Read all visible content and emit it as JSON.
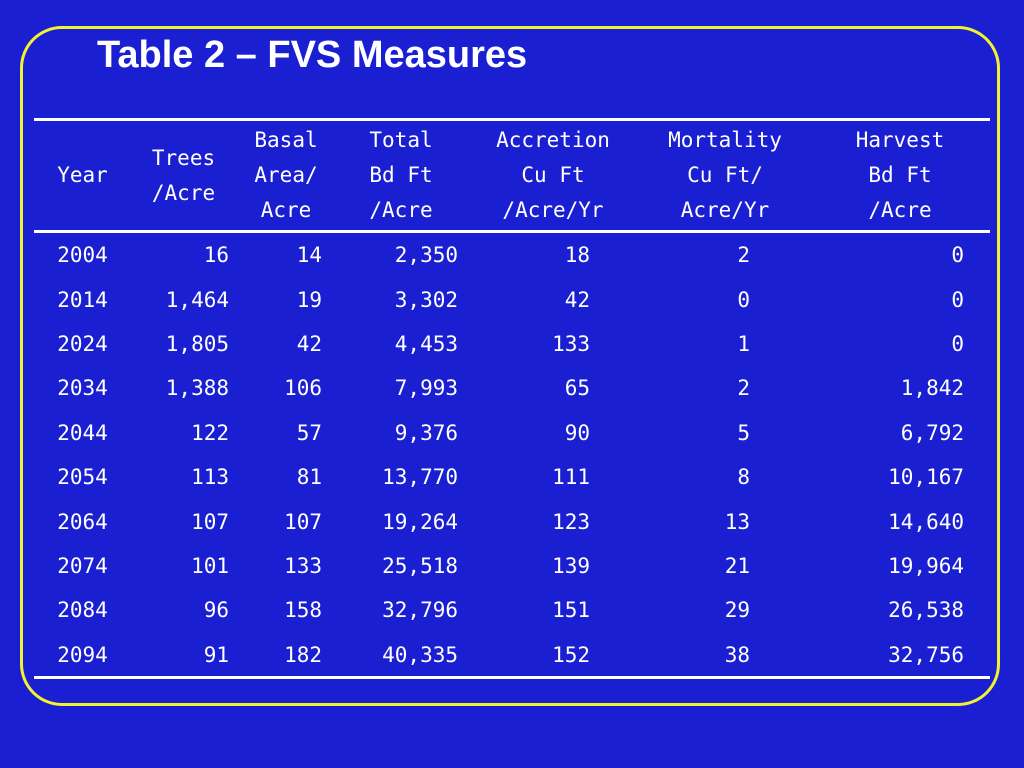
{
  "slide": {
    "title": "Table 2 – FVS Measures",
    "colors": {
      "background": "#1a1fd1",
      "frame_border": "#f2f230",
      "text": "#ffffff"
    }
  },
  "table": {
    "headers": [
      [
        "Year"
      ],
      [
        "Trees",
        "/Acre"
      ],
      [
        "Basal",
        "Area/",
        "Acre"
      ],
      [
        "Total",
        "Bd Ft",
        "/Acre"
      ],
      [
        "Accretion",
        "Cu Ft",
        "/Acre/Yr"
      ],
      [
        "Mortality",
        "Cu Ft/",
        "Acre/Yr"
      ],
      [
        "Harvest",
        "Bd Ft",
        "/Acre"
      ]
    ],
    "rows": [
      [
        "2004",
        "16",
        "14",
        "2,350",
        "18",
        "2",
        "0"
      ],
      [
        "2014",
        "1,464",
        "19",
        "3,302",
        "42",
        "0",
        "0"
      ],
      [
        "2024",
        "1,805",
        "42",
        "4,453",
        "133",
        "1",
        "0"
      ],
      [
        "2034",
        "1,388",
        "106",
        "7,993",
        "65",
        "2",
        "1,842"
      ],
      [
        "2044",
        "122",
        "57",
        "9,376",
        "90",
        "5",
        "6,792"
      ],
      [
        "2054",
        "113",
        "81",
        "13,770",
        "111",
        "8",
        "10,167"
      ],
      [
        "2064",
        "107",
        "107",
        "19,264",
        "123",
        "13",
        "14,640"
      ],
      [
        "2074",
        "101",
        "133",
        "25,518",
        "139",
        "21",
        "19,964"
      ],
      [
        "2084",
        "96",
        "158",
        "32,796",
        "151",
        "29",
        "26,538"
      ],
      [
        "2094",
        "91",
        "182",
        "40,335",
        "152",
        "38",
        "32,756"
      ]
    ]
  }
}
